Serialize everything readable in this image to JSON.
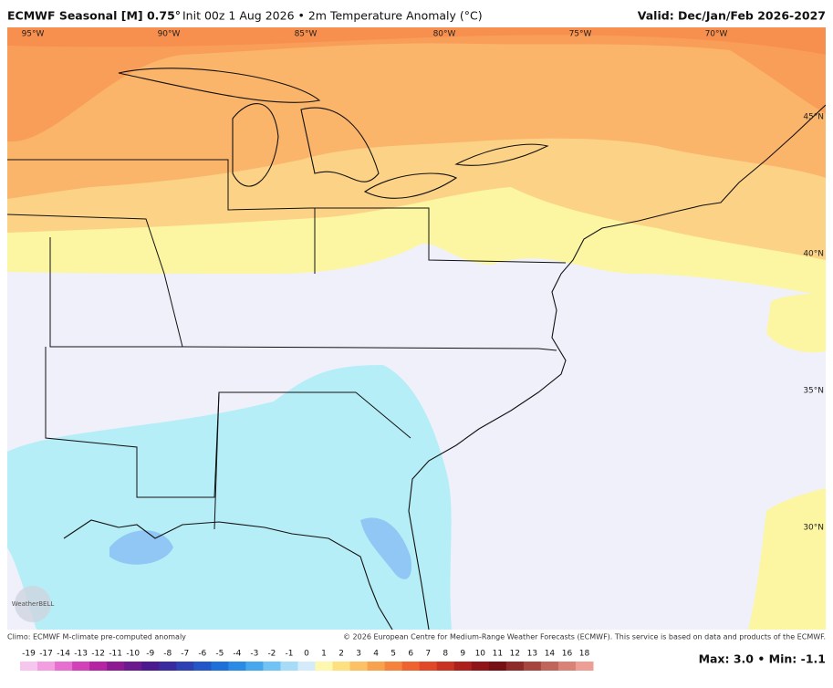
{
  "header": {
    "model": "ECMWF Seasonal [M] 0.75°",
    "detail": "Init 00z 1 Aug 2026 • 2m Temperature Anomaly (°C)",
    "valid": "Valid: Dec/Jan/Feb 2026-2027"
  },
  "map": {
    "lon_labels": [
      "95°W",
      "90°W",
      "85°W",
      "80°W",
      "75°W",
      "70°W"
    ],
    "lat_labels": [
      "45°N",
      "40°N",
      "35°N",
      "30°N"
    ],
    "logo": "WeatherBELL"
  },
  "footer": {
    "climo": "Climo: ECMWF M-climate pre-computed anomaly",
    "copyright": "© 2026 European Centre for Medium-Range Weather Forecasts (ECMWF). This service is based on data and products of the ECMWF."
  },
  "colorbar": {
    "labels": [
      "-19",
      "-17",
      "-14",
      "-13",
      "-12",
      "-11",
      "-10",
      "-9",
      "-8",
      "-7",
      "-6",
      "-5",
      "-4",
      "-3",
      "-2",
      "-1",
      "0",
      "1",
      "2",
      "3",
      "4",
      "5",
      "6",
      "7",
      "8",
      "9",
      "10",
      "11",
      "12",
      "13",
      "14",
      "16",
      "18"
    ]
  },
  "stats": "Max: 3.0 • Min: -1.1"
}
